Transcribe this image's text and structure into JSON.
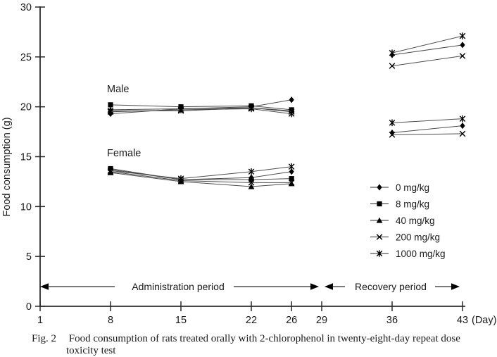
{
  "figure": {
    "caption_prefix": "Fig. 2",
    "caption_line1": "Food consumption of rats treated orally with 2-chlorophenol in twenty-eight-day repeat dose",
    "caption_line2": "toxicity test"
  },
  "chart_data": {
    "type": "line",
    "title": "",
    "ylabel": "Food consumption (g)",
    "x_unit_label": "(Day)",
    "ylim": [
      0,
      30
    ],
    "yticks": [
      0,
      5,
      10,
      15,
      20,
      25,
      30
    ],
    "xticks": [
      1,
      8,
      15,
      22,
      26,
      29,
      36,
      43
    ],
    "grid": false,
    "colors": {
      "axis": "#2b2b2b",
      "line": "#4d4d4d",
      "marker": "#000000",
      "text": "#1a1a1a"
    },
    "legend": {
      "position": "right-middle",
      "items": [
        {
          "label": "0 mg/kg",
          "marker": "diamond"
        },
        {
          "label": "8 mg/kg",
          "marker": "square"
        },
        {
          "label": "40 mg/kg",
          "marker": "triangle"
        },
        {
          "label": "200 mg/kg",
          "marker": "x"
        },
        {
          "label": "1000 mg/kg",
          "marker": "star"
        }
      ]
    },
    "annotations": {
      "administration_label": "Administration period",
      "recovery_label": "Recovery period"
    },
    "groups": [
      {
        "label": "Male",
        "series": [
          {
            "name": "0 mg/kg",
            "marker": "diamond",
            "segments": [
              {
                "x": [
                  8,
                  15,
                  22,
                  26
                ],
                "y": [
                  19.3,
                  19.8,
                  20.0,
                  20.7
                ]
              },
              {
                "x": [
                  36,
                  43
                ],
                "y": [
                  25.2,
                  26.2
                ]
              }
            ]
          },
          {
            "name": "8 mg/kg",
            "marker": "square",
            "segments": [
              {
                "x": [
                  8,
                  15,
                  22,
                  26
                ],
                "y": [
                  20.2,
                  20.0,
                  20.1,
                  19.7
                ]
              }
            ]
          },
          {
            "name": "40 mg/kg",
            "marker": "triangle",
            "segments": [
              {
                "x": [
                  8,
                  15,
                  22,
                  26
                ],
                "y": [
                  19.7,
                  19.8,
                  19.9,
                  19.6
                ]
              }
            ]
          },
          {
            "name": "200 mg/kg",
            "marker": "x",
            "segments": [
              {
                "x": [
                  8,
                  15,
                  22,
                  26
                ],
                "y": [
                  19.6,
                  19.6,
                  19.9,
                  19.5
                ]
              },
              {
                "x": [
                  36,
                  43
                ],
                "y": [
                  24.1,
                  25.1
                ]
              }
            ]
          },
          {
            "name": "1000 mg/kg",
            "marker": "star",
            "segments": [
              {
                "x": [
                  8,
                  15,
                  22,
                  26
                ],
                "y": [
                  19.5,
                  19.7,
                  19.8,
                  19.3
                ]
              },
              {
                "x": [
                  36,
                  43
                ],
                "y": [
                  25.4,
                  27.1
                ]
              }
            ]
          }
        ]
      },
      {
        "label": "Female",
        "series": [
          {
            "name": "0 mg/kg",
            "marker": "diamond",
            "segments": [
              {
                "x": [
                  8,
                  15,
                  22,
                  26
                ],
                "y": [
                  13.7,
                  12.7,
                  12.9,
                  13.5
                ]
              },
              {
                "x": [
                  36,
                  43
                ],
                "y": [
                  17.4,
                  18.1
                ]
              }
            ]
          },
          {
            "name": "8 mg/kg",
            "marker": "square",
            "segments": [
              {
                "x": [
                  8,
                  15,
                  22,
                  26
                ],
                "y": [
                  13.8,
                  12.7,
                  12.7,
                  12.8
                ]
              }
            ]
          },
          {
            "name": "40 mg/kg",
            "marker": "triangle",
            "segments": [
              {
                "x": [
                  8,
                  15,
                  22,
                  26
                ],
                "y": [
                  13.4,
                  12.5,
                  12.0,
                  12.3
                ]
              }
            ]
          },
          {
            "name": "200 mg/kg",
            "marker": "x",
            "segments": [
              {
                "x": [
                  8,
                  15,
                  22,
                  26
                ],
                "y": [
                  13.5,
                  12.6,
                  12.4,
                  12.4
                ]
              },
              {
                "x": [
                  36,
                  43
                ],
                "y": [
                  17.2,
                  17.3
                ]
              }
            ]
          },
          {
            "name": "1000 mg/kg",
            "marker": "star",
            "segments": [
              {
                "x": [
                  8,
                  15,
                  22,
                  26
                ],
                "y": [
                  13.6,
                  12.8,
                  13.5,
                  14.0
                ]
              },
              {
                "x": [
                  36,
                  43
                ],
                "y": [
                  18.4,
                  18.8
                ]
              }
            ]
          }
        ]
      }
    ]
  }
}
